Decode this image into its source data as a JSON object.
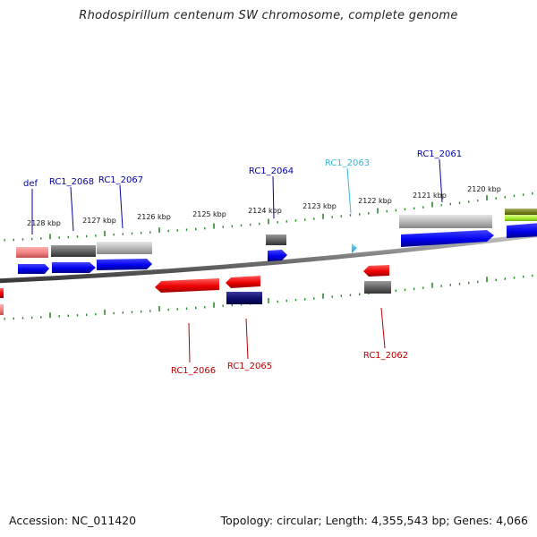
{
  "title": "Rhodospirillum centenum SW chromosome, complete genome",
  "accession": "Accession: NC_011420",
  "topology": "Topology: circular; Length: 4,355,543 bp; Genes: 4,066",
  "colors": {
    "backbone": "#7a7a7a",
    "tick": "#2e8b2e",
    "blue_label": "#0000aa",
    "cyan_label": "#33bbdd",
    "red_label": "#bb0000",
    "tick_label": "#111111"
  },
  "kbp_labels": [
    "2128 kbp",
    "2127 kbp",
    "2126 kbp",
    "2125 kbp",
    "2124 kbp",
    "2123 kbp",
    "2122 kbp",
    "2121 kbp",
    "2120 kbp"
  ],
  "gene_labels": {
    "def": "def",
    "rc1_2068": "RC1_2068",
    "rc1_2067": "RC1_2067",
    "rc1_2064": "RC1_2064",
    "rc1_2063": "RC1_2063",
    "rc1_2061": "RC1_2061",
    "rc1_2066": "RC1_2066",
    "rc1_2065": "RC1_2065",
    "rc1_2062": "RC1_2062"
  }
}
